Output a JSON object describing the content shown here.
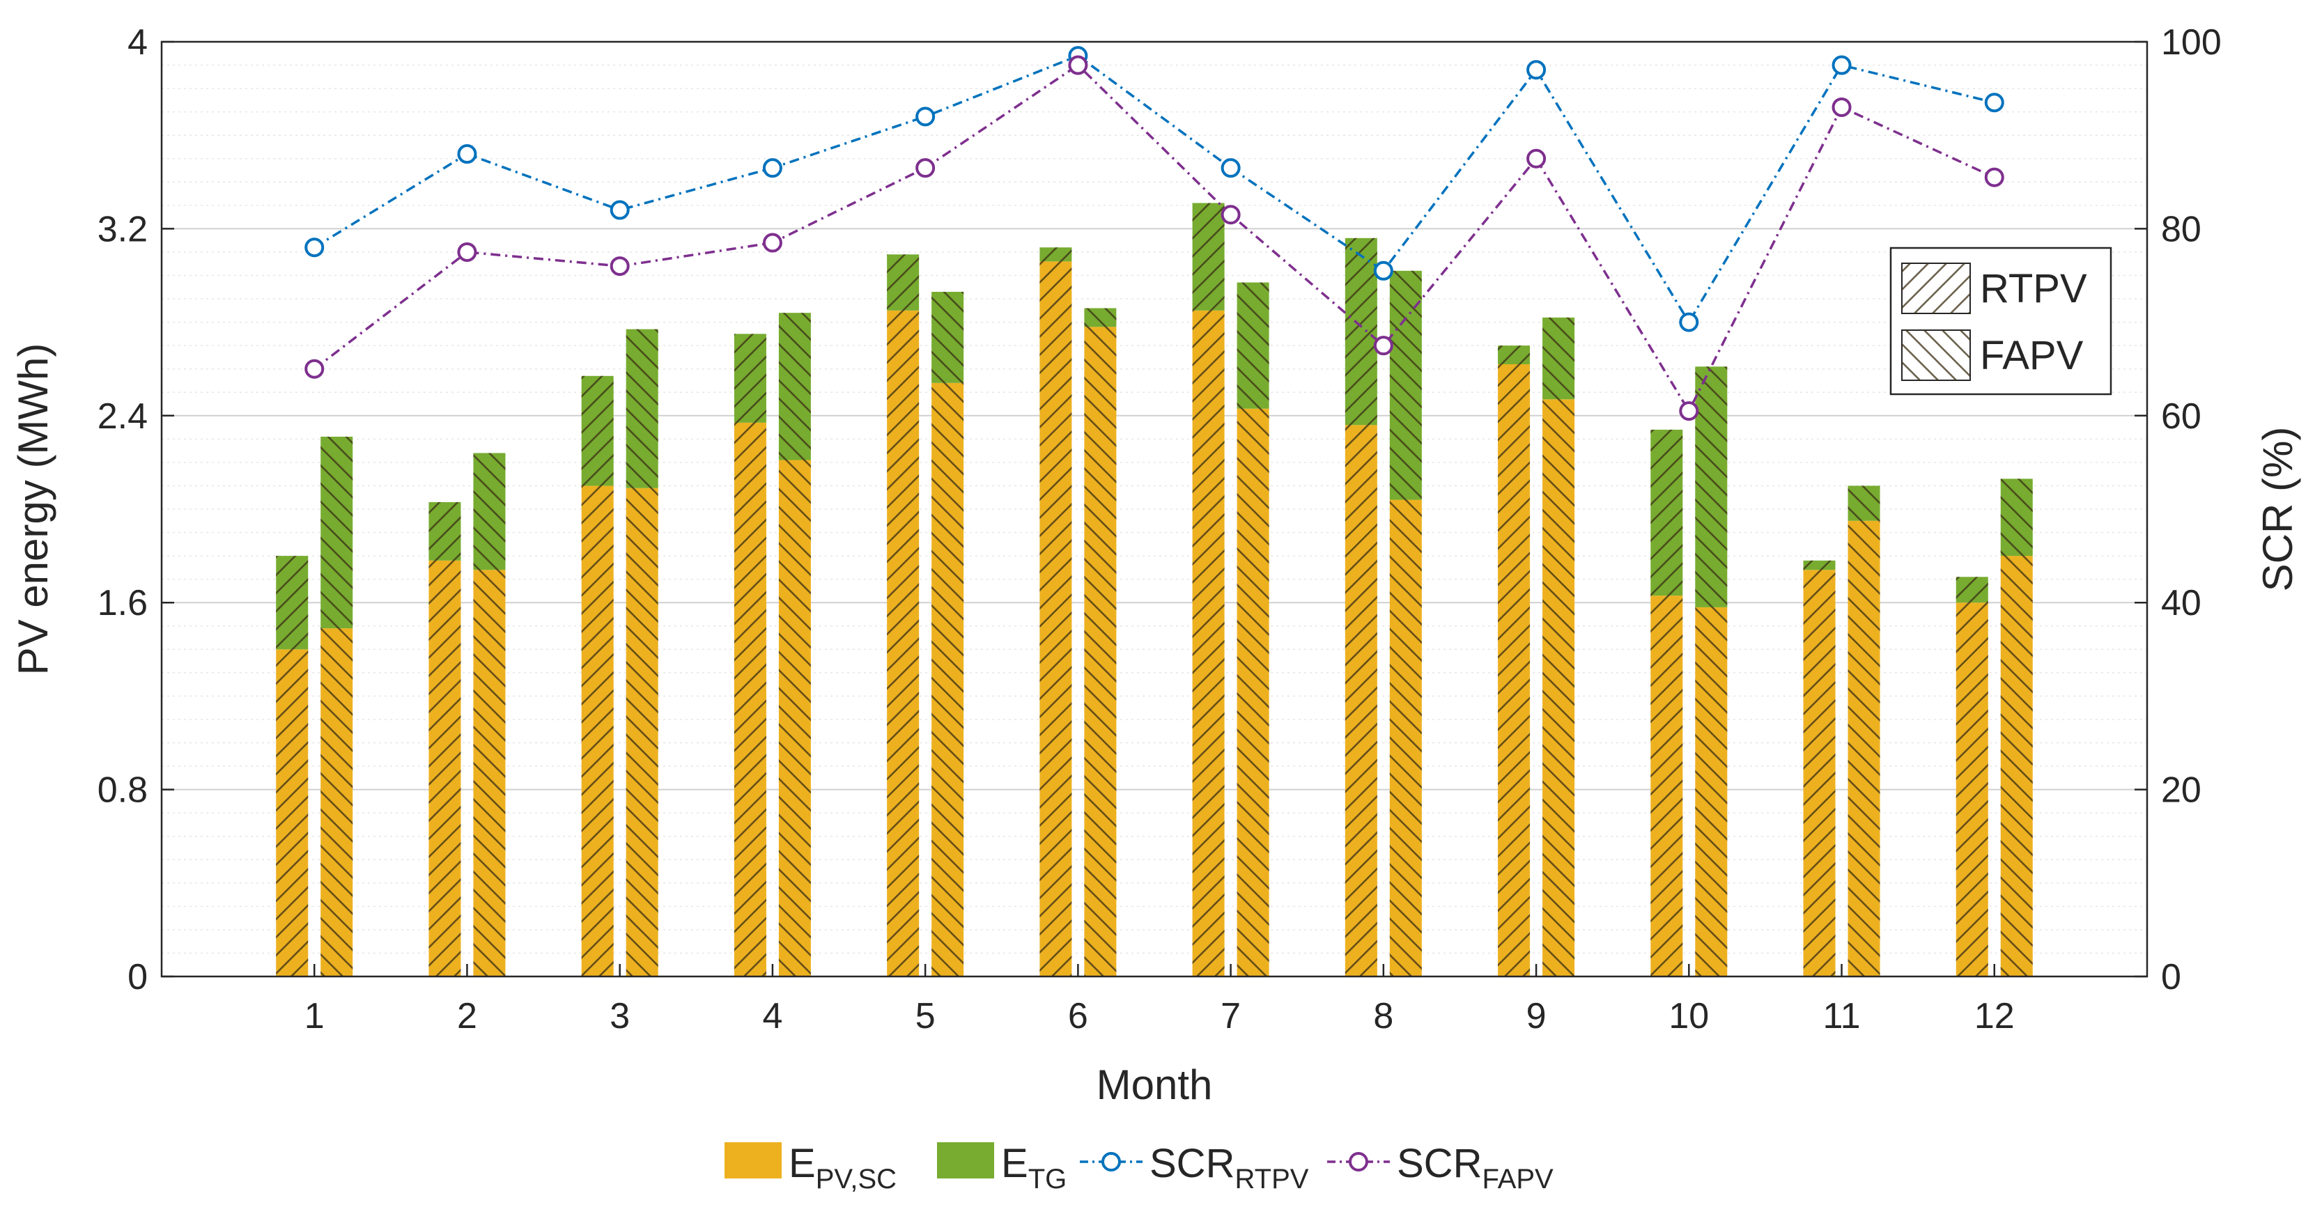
{
  "chart_data": {
    "type": "bar",
    "title": "",
    "xlabel": "Month",
    "ylabel": "PV energy (MWh)",
    "y2label": "SCR (%)",
    "ylim": [
      0,
      4
    ],
    "y2lim": [
      0,
      100
    ],
    "yticks": [
      "0",
      "0.8",
      "1.6",
      "2.4",
      "3.2",
      "4"
    ],
    "y2ticks": [
      "0",
      "20",
      "40",
      "60",
      "80",
      "100"
    ],
    "categories": [
      "1",
      "2",
      "3",
      "4",
      "5",
      "6",
      "7",
      "8",
      "9",
      "10",
      "11",
      "12"
    ],
    "bars": {
      "RTPV": {
        "E_PV_SC": [
          1.4,
          1.78,
          2.1,
          2.37,
          2.85,
          3.06,
          2.85,
          2.36,
          2.62,
          1.63,
          1.74,
          1.6
        ],
        "E_TG": [
          0.4,
          0.25,
          0.47,
          0.38,
          0.24,
          0.06,
          0.46,
          0.8,
          0.08,
          0.71,
          0.04,
          0.11
        ]
      },
      "FAPV": {
        "E_PV_SC": [
          1.49,
          1.74,
          2.09,
          2.21,
          2.54,
          2.78,
          2.43,
          2.04,
          2.47,
          1.58,
          1.95,
          1.8
        ],
        "E_TG": [
          0.82,
          0.5,
          0.68,
          0.63,
          0.39,
          0.08,
          0.54,
          0.98,
          0.35,
          1.03,
          0.15,
          0.33
        ]
      },
      "colors": {
        "E_PV_SC": "#EDB120",
        "E_TG": "#77AC30"
      }
    },
    "lines": [
      {
        "name": "SCR_RTPV",
        "color": "#0072BD",
        "values": [
          78.0,
          88.0,
          82.0,
          86.5,
          92.0,
          98.5,
          86.5,
          75.5,
          97.0,
          70.0,
          97.5,
          93.5
        ]
      },
      {
        "name": "SCR_FAPV",
        "color": "#7E2F8E",
        "values": [
          65.0,
          77.5,
          76.0,
          78.5,
          86.5,
          97.5,
          81.5,
          67.5,
          87.5,
          60.5,
          93.0,
          85.5
        ]
      }
    ],
    "hatch_legend": [
      "RTPV",
      "FAPV"
    ],
    "legend": {
      "items": [
        {
          "key": "E_PV_SC",
          "main": "E",
          "sub": "PV,SC",
          "kind": "patch",
          "color": "#EDB120"
        },
        {
          "key": "E_TG",
          "main": "E",
          "sub": "TG",
          "kind": "patch",
          "color": "#77AC30"
        },
        {
          "key": "SCR_RTPV",
          "main": "SCR",
          "sub": "RTPV",
          "kind": "line",
          "color": "#0072BD"
        },
        {
          "key": "SCR_FAPV",
          "main": "SCR",
          "sub": "FAPV",
          "kind": "line",
          "color": "#7E2F8E"
        }
      ],
      "placement": "bottom-outside"
    }
  }
}
